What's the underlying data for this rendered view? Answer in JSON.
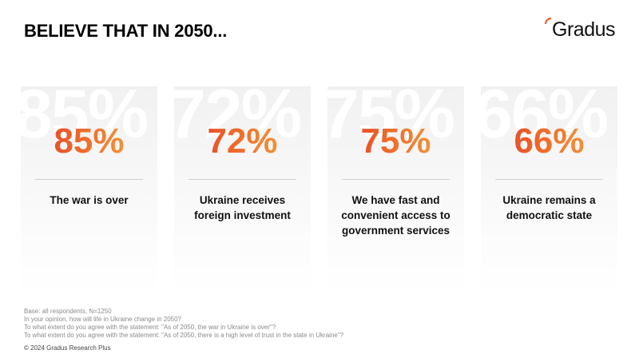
{
  "header": {
    "title": "BELIEVE THAT IN 2050..."
  },
  "logo": {
    "text": "Gradus",
    "accent_color": "#e8561f"
  },
  "cards": [
    {
      "value": "85%",
      "label": "The war is over"
    },
    {
      "value": "72%",
      "label": "Ukraine receives foreign investment"
    },
    {
      "value": "75%",
      "label": "We have fast and convenient access to government services"
    },
    {
      "value": "66%",
      "label": "Ukraine remains a democratic state"
    }
  ],
  "value_gradient": [
    "#e5332a",
    "#ee6a2a",
    "#f4b040"
  ],
  "footnotes": {
    "lines": [
      "Base: all respondents, N=1250",
      "In your opinion, how will life in Ukraine change in 2050?",
      "To what extent do you agree with the statement: \"As of 2050, the war in Ukraine is over\"?",
      "To what extent do you agree with the statement: \"As of 2050, there is a high level of trust in the state in Ukraine\"?"
    ],
    "copyright": "© 2024 Gradus Research Plus"
  }
}
